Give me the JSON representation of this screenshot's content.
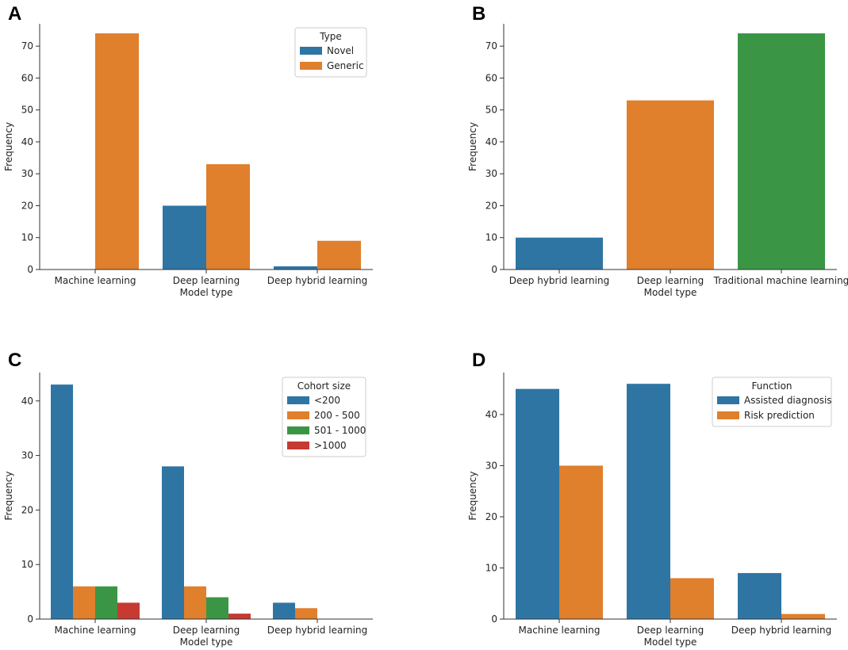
{
  "figure": {
    "panels": [
      "A",
      "B",
      "C",
      "D"
    ]
  },
  "colors": {
    "blue": "#2E75A4",
    "orange": "#E07F2C",
    "green": "#3A9645",
    "red": "#C63A32"
  },
  "chart_data": [
    {
      "panel": "A",
      "type": "bar",
      "xlabel": "Model type",
      "ylabel": "Frequency",
      "ylim": [
        0,
        77
      ],
      "yticks": [
        0,
        10,
        20,
        30,
        40,
        50,
        60,
        70
      ],
      "categories": [
        "Machine learning",
        "Deep learning",
        "Deep hybrid learning"
      ],
      "legend": {
        "title": "Type",
        "position": "top-right"
      },
      "series": [
        {
          "name": "Novel",
          "color": "#2E75A4",
          "values": [
            0,
            20,
            1
          ]
        },
        {
          "name": "Generic",
          "color": "#E07F2C",
          "values": [
            74,
            33,
            9
          ]
        }
      ]
    },
    {
      "panel": "B",
      "type": "bar",
      "xlabel": "Model type",
      "ylabel": "Frequency",
      "ylim": [
        0,
        77
      ],
      "yticks": [
        0,
        10,
        20,
        30,
        40,
        50,
        60,
        70
      ],
      "categories": [
        "Deep hybrid learning",
        "Deep learning",
        "Traditional machine learning"
      ],
      "legend": null,
      "series": [
        {
          "name": "Frequency",
          "colors": [
            "#2E75A4",
            "#E07F2C",
            "#3A9645"
          ],
          "values": [
            10,
            53,
            74
          ]
        }
      ]
    },
    {
      "panel": "C",
      "type": "bar",
      "xlabel": "Model type",
      "ylabel": "Frequency",
      "ylim": [
        0,
        45.2
      ],
      "yticks": [
        0,
        10,
        20,
        30,
        40
      ],
      "categories": [
        "Machine learning",
        "Deep learning",
        "Deep hybrid learning"
      ],
      "legend": {
        "title": "Cohort size",
        "position": "top-right"
      },
      "series": [
        {
          "name": "<200",
          "color": "#2E75A4",
          "values": [
            43,
            28,
            3
          ]
        },
        {
          "name": "200 - 500",
          "color": "#E07F2C",
          "values": [
            6,
            6,
            2
          ]
        },
        {
          "name": "501 - 1000",
          "color": "#3A9645",
          "values": [
            6,
            4,
            0
          ]
        },
        {
          "name": ">1000",
          "color": "#C63A32",
          "values": [
            3,
            1,
            0
          ]
        }
      ]
    },
    {
      "panel": "D",
      "type": "bar",
      "xlabel": "Model type",
      "ylabel": "Frequency",
      "ylim": [
        0,
        48.2
      ],
      "yticks": [
        0,
        10,
        20,
        30,
        40
      ],
      "categories": [
        "Machine learning",
        "Deep learning",
        "Deep hybrid learning"
      ],
      "legend": {
        "title": "Function",
        "position": "top-right"
      },
      "series": [
        {
          "name": "Assisted diagnosis",
          "color": "#2E75A4",
          "values": [
            45,
            46,
            9
          ]
        },
        {
          "name": "Risk prediction",
          "color": "#E07F2C",
          "values": [
            30,
            8,
            1
          ]
        }
      ]
    }
  ]
}
